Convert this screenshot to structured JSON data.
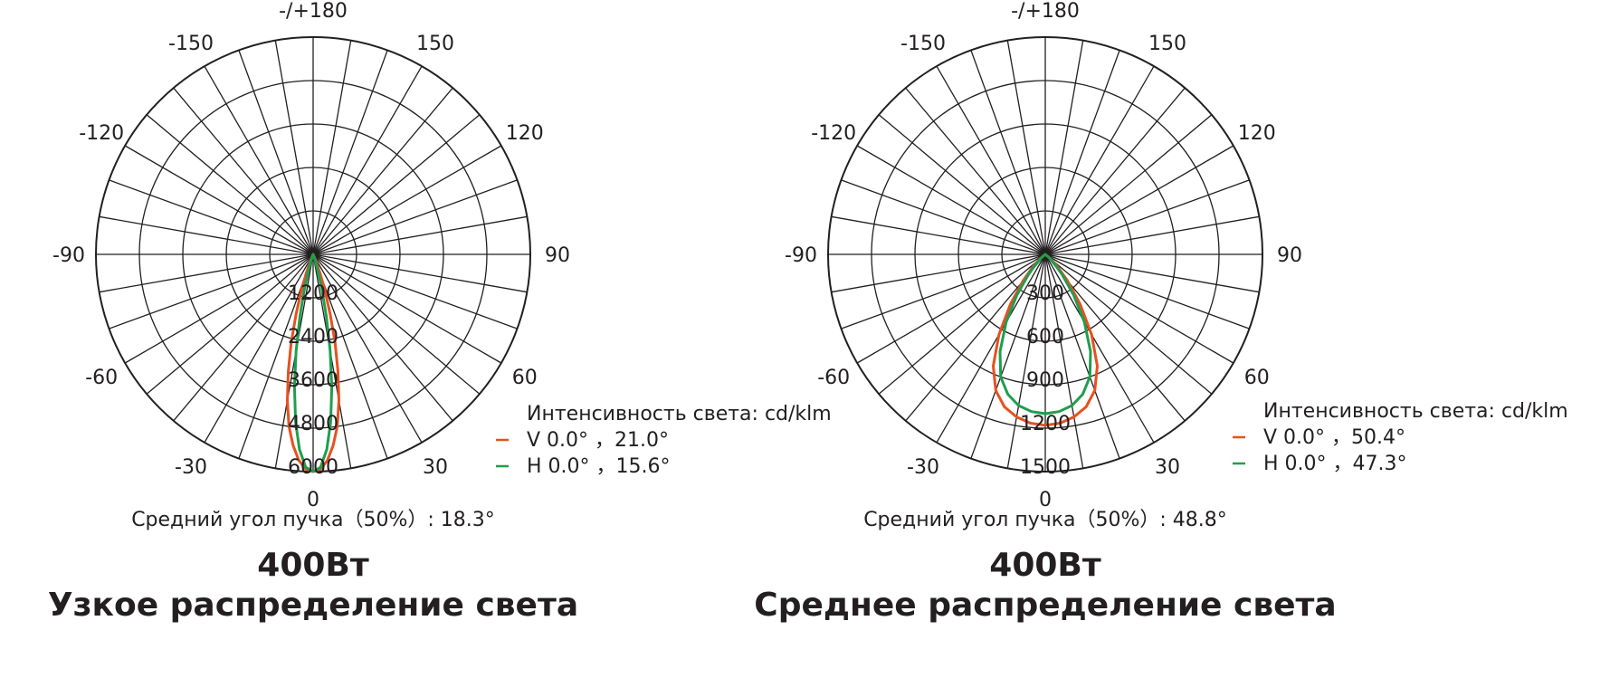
{
  "chart_data": [
    {
      "type": "polar",
      "angle_labels": [
        {
          "angle": 0,
          "label": "0"
        },
        {
          "angle": 30,
          "label": "30"
        },
        {
          "angle": 60,
          "label": "60"
        },
        {
          "angle": 90,
          "label": "90"
        },
        {
          "angle": 120,
          "label": "120"
        },
        {
          "angle": 150,
          "label": "150"
        },
        {
          "angle": 180,
          "label": "-/+180"
        },
        {
          "angle": -150,
          "label": "-150"
        },
        {
          "angle": -120,
          "label": "-120"
        },
        {
          "angle": -90,
          "label": "-90"
        },
        {
          "angle": -60,
          "label": "-60"
        },
        {
          "angle": -30,
          "label": "-30"
        }
      ],
      "radial_ticks": [
        "1200",
        "2400",
        "3600",
        "4800",
        "6000"
      ],
      "radial_max": 6000,
      "unit_label": "Интенсивность света: cd/klm",
      "series": [
        {
          "name": "V 0.0°  ，21.0°",
          "color": "#e8501e",
          "points": [
            [
              0,
              6000
            ],
            [
              2,
              5930
            ],
            [
              4,
              5700
            ],
            [
              6,
              5300
            ],
            [
              8,
              4800
            ],
            [
              10,
              4100
            ],
            [
              12,
              3300
            ],
            [
              14,
              2500
            ],
            [
              16,
              1700
            ],
            [
              18,
              1050
            ],
            [
              20,
              560
            ],
            [
              22,
              250
            ],
            [
              25,
              60
            ],
            [
              30,
              0
            ]
          ]
        },
        {
          "name": "H 0.0°  ，15.6°",
          "color": "#1f9e4f",
          "points": [
            [
              0,
              6000
            ],
            [
              2,
              5880
            ],
            [
              4,
              5400
            ],
            [
              6,
              4650
            ],
            [
              8,
              3700
            ],
            [
              10,
              2700
            ],
            [
              12,
              1750
            ],
            [
              14,
              1000
            ],
            [
              16,
              520
            ],
            [
              18,
              220
            ],
            [
              20,
              80
            ],
            [
              24,
              0
            ]
          ]
        }
      ],
      "beam_text": "Средний угол пучка（50%）:  18.3°",
      "power": "400Вт",
      "distribution": "Узкое распределение света"
    },
    {
      "type": "polar",
      "angle_labels": [
        {
          "angle": 0,
          "label": "0"
        },
        {
          "angle": 30,
          "label": "30"
        },
        {
          "angle": 60,
          "label": "60"
        },
        {
          "angle": 90,
          "label": "90"
        },
        {
          "angle": 120,
          "label": "120"
        },
        {
          "angle": 150,
          "label": "150"
        },
        {
          "angle": 180,
          "label": "-/+180"
        },
        {
          "angle": -150,
          "label": "-150"
        },
        {
          "angle": -120,
          "label": "-120"
        },
        {
          "angle": -90,
          "label": "-90"
        },
        {
          "angle": -60,
          "label": "-60"
        },
        {
          "angle": -30,
          "label": "-30"
        }
      ],
      "radial_ticks": [
        "300",
        "600",
        "900",
        "1200",
        "1500"
      ],
      "radial_max": 1500,
      "unit_label": "Интенсивность света: cd/klm",
      "series": [
        {
          "name": "V 0.0°  ，50.4°",
          "color": "#e8501e",
          "points": [
            [
              0,
              1180
            ],
            [
              5,
              1170
            ],
            [
              10,
              1140
            ],
            [
              15,
              1090
            ],
            [
              20,
              1000
            ],
            [
              25,
              850
            ],
            [
              30,
              640
            ],
            [
              35,
              420
            ],
            [
              40,
              240
            ],
            [
              45,
              120
            ],
            [
              50,
              50
            ],
            [
              60,
              0
            ]
          ]
        },
        {
          "name": "H 0.0°  ，47.3°",
          "color": "#1f9e4f",
          "points": [
            [
              0,
              1100
            ],
            [
              5,
              1090
            ],
            [
              10,
              1060
            ],
            [
              15,
              1000
            ],
            [
              20,
              900
            ],
            [
              25,
              740
            ],
            [
              30,
              540
            ],
            [
              35,
              340
            ],
            [
              40,
              180
            ],
            [
              45,
              80
            ],
            [
              50,
              30
            ],
            [
              58,
              0
            ]
          ]
        }
      ],
      "beam_text": "Средний угол пучка（50%）:  48.8°",
      "power": "400Вт",
      "distribution": "Среднее распределение света"
    }
  ]
}
